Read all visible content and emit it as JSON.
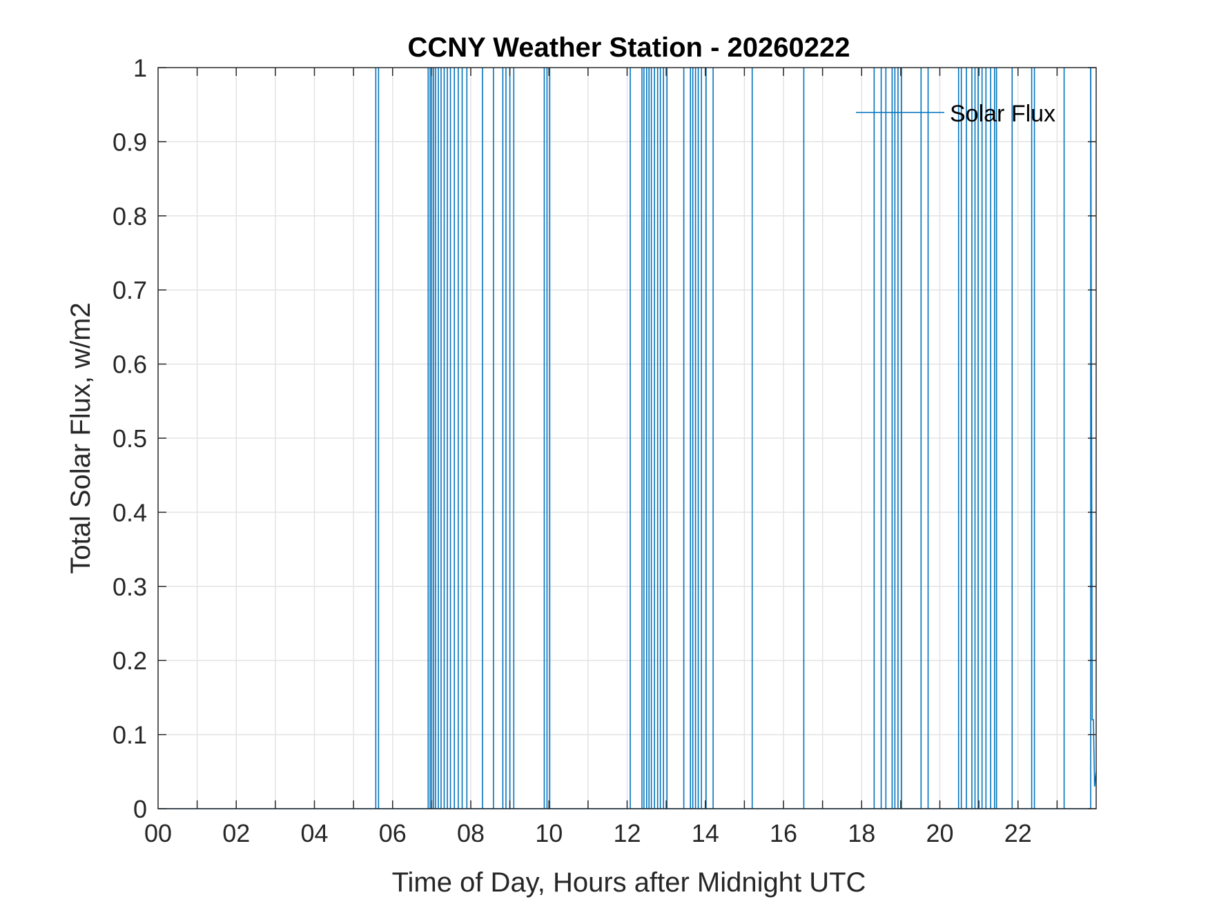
{
  "chart_data": {
    "type": "line",
    "title": "CCNY Weather Station - 20260222",
    "xlabel": "Time of Day, Hours after Midnight UTC",
    "ylabel": "Total Solar Flux, w/m2",
    "xlim": [
      0,
      24
    ],
    "ylim": [
      0,
      1
    ],
    "xticks": [
      0,
      2,
      4,
      6,
      8,
      10,
      12,
      14,
      16,
      18,
      20,
      22
    ],
    "xtick_labels": [
      "00",
      "02",
      "04",
      "06",
      "08",
      "10",
      "12",
      "14",
      "16",
      "18",
      "20",
      "22"
    ],
    "yticks": [
      0,
      0.1,
      0.2,
      0.3,
      0.4,
      0.5,
      0.6,
      0.7,
      0.8,
      0.9,
      1
    ],
    "ytick_labels": [
      "0",
      "0.1",
      "0.2",
      "0.3",
      "0.4",
      "0.5",
      "0.6",
      "0.7",
      "0.8",
      "0.9",
      "1"
    ],
    "grid": true,
    "legend_position": "top-right",
    "series": [
      {
        "name": "Solar Flux",
        "color": "#0072BD",
        "spike_hours": [
          5.57,
          5.64,
          6.91,
          6.96,
          7.0,
          7.05,
          7.1,
          7.17,
          7.24,
          7.32,
          7.4,
          7.48,
          7.58,
          7.68,
          7.78,
          7.9,
          8.3,
          8.58,
          8.82,
          8.9,
          9.0,
          9.1,
          9.88,
          9.95,
          10.02,
          12.08,
          12.38,
          12.43,
          12.5,
          12.56,
          12.62,
          12.7,
          12.78,
          12.85,
          12.93,
          13.02,
          13.45,
          13.62,
          13.68,
          13.75,
          13.82,
          13.9,
          14.02,
          14.2,
          15.2,
          16.52,
          18.32,
          18.5,
          18.62,
          18.78,
          18.85,
          18.93,
          19.02,
          19.52,
          19.7,
          20.48,
          20.55,
          20.68,
          20.82,
          20.9,
          20.98,
          21.08,
          21.18,
          21.3,
          21.4,
          21.45,
          21.85,
          22.35,
          22.42,
          23.18,
          23.86
        ],
        "tail": [
          [
            23.86,
            1
          ],
          [
            23.9,
            0.12
          ],
          [
            23.93,
            0.12
          ],
          [
            23.96,
            0.03
          ],
          [
            24,
            0.05
          ]
        ],
        "baseline": 0
      }
    ]
  }
}
